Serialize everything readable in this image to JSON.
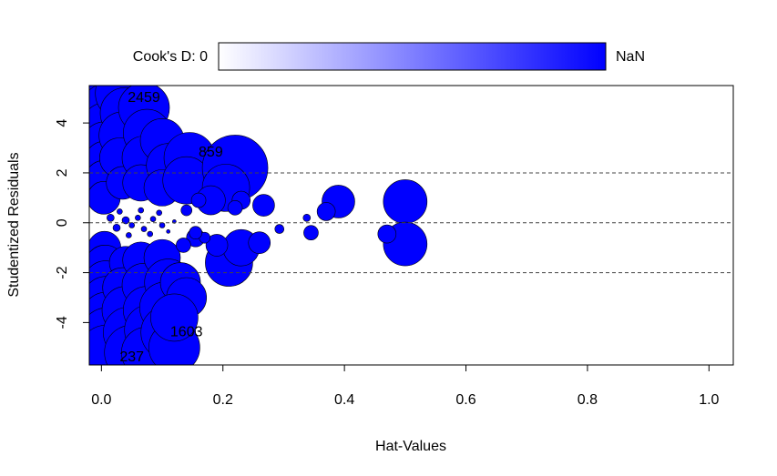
{
  "chart_data": {
    "type": "scatter",
    "title": "",
    "xlabel": "Hat-Values",
    "ylabel": "Studentized Residuals",
    "xlim": [
      -0.02,
      1.04
    ],
    "ylim": [
      -5.7,
      5.5
    ],
    "xticks": [
      0.0,
      0.2,
      0.4,
      0.6,
      0.8,
      1.0
    ],
    "xtick_labels": [
      "0.0",
      "0.2",
      "0.4",
      "0.6",
      "0.8",
      "1.0"
    ],
    "yticks": [
      -4,
      -2,
      0,
      2,
      4
    ],
    "ytick_labels": [
      "-4",
      "-2",
      "0",
      "2",
      "4"
    ],
    "reference_lines_y": [
      -2,
      0,
      2
    ],
    "reference_line_style": "dashed",
    "grid": false,
    "point_color": "#0000ff",
    "legend": {
      "position": "top",
      "label": "Cook's D: 0",
      "max_label": "NaN",
      "gradient_from": "#ffffff",
      "gradient_to": "#0000ff"
    },
    "point_labels": [
      {
        "id": "2459",
        "x": 0.07,
        "y": 5.0
      },
      {
        "id": "859",
        "x": 0.18,
        "y": 2.8
      },
      {
        "id": "1603",
        "x": 0.14,
        "y": -4.4
      },
      {
        "id": "237",
        "x": 0.05,
        "y": -5.4
      }
    ],
    "points": [
      {
        "x": 0.005,
        "y": 5.2,
        "size": 32
      },
      {
        "x": 0.01,
        "y": 4.5,
        "size": 30
      },
      {
        "x": 0.008,
        "y": 3.8,
        "size": 28
      },
      {
        "x": 0.006,
        "y": 3.1,
        "size": 26
      },
      {
        "x": 0.007,
        "y": 2.4,
        "size": 24
      },
      {
        "x": 0.005,
        "y": 1.7,
        "size": 22
      },
      {
        "x": 0.004,
        "y": 1.0,
        "size": 18
      },
      {
        "x": 0.005,
        "y": -1.0,
        "size": 18
      },
      {
        "x": 0.006,
        "y": -1.7,
        "size": 22
      },
      {
        "x": 0.007,
        "y": -2.4,
        "size": 24
      },
      {
        "x": 0.008,
        "y": -3.1,
        "size": 26
      },
      {
        "x": 0.009,
        "y": -3.8,
        "size": 28
      },
      {
        "x": 0.01,
        "y": -4.5,
        "size": 30
      },
      {
        "x": 0.008,
        "y": -5.2,
        "size": 30
      },
      {
        "x": 0.035,
        "y": 5.2,
        "size": 30
      },
      {
        "x": 0.04,
        "y": 4.4,
        "size": 28
      },
      {
        "x": 0.035,
        "y": 3.5,
        "size": 26
      },
      {
        "x": 0.03,
        "y": 2.6,
        "size": 22
      },
      {
        "x": 0.035,
        "y": 1.6,
        "size": 18
      },
      {
        "x": 0.04,
        "y": -1.6,
        "size": 18
      },
      {
        "x": 0.035,
        "y": -2.6,
        "size": 22
      },
      {
        "x": 0.04,
        "y": -3.5,
        "size": 26
      },
      {
        "x": 0.045,
        "y": -4.4,
        "size": 28
      },
      {
        "x": 0.05,
        "y": -5.2,
        "size": 30
      },
      {
        "x": 0.07,
        "y": 4.6,
        "size": 28
      },
      {
        "x": 0.075,
        "y": 3.6,
        "size": 26
      },
      {
        "x": 0.07,
        "y": 2.6,
        "size": 24
      },
      {
        "x": 0.065,
        "y": 1.6,
        "size": 20
      },
      {
        "x": 0.065,
        "y": -1.5,
        "size": 20
      },
      {
        "x": 0.07,
        "y": -2.5,
        "size": 24
      },
      {
        "x": 0.075,
        "y": -3.5,
        "size": 26
      },
      {
        "x": 0.08,
        "y": -4.3,
        "size": 28
      },
      {
        "x": 0.075,
        "y": -5.2,
        "size": 28
      },
      {
        "x": 0.1,
        "y": 3.3,
        "size": 24
      },
      {
        "x": 0.11,
        "y": 2.3,
        "size": 24
      },
      {
        "x": 0.1,
        "y": 1.4,
        "size": 20
      },
      {
        "x": 0.1,
        "y": -1.4,
        "size": 20
      },
      {
        "x": 0.11,
        "y": -2.4,
        "size": 26
      },
      {
        "x": 0.105,
        "y": -3.4,
        "size": 28
      },
      {
        "x": 0.11,
        "y": -4.4,
        "size": 30
      },
      {
        "x": 0.12,
        "y": -5.0,
        "size": 28
      },
      {
        "x": 0.145,
        "y": 2.6,
        "size": 28
      },
      {
        "x": 0.14,
        "y": 1.7,
        "size": 26
      },
      {
        "x": 0.13,
        "y": -2.4,
        "size": 22
      },
      {
        "x": 0.14,
        "y": -3.0,
        "size": 22
      },
      {
        "x": 0.12,
        "y": -3.8,
        "size": 26
      },
      {
        "x": 0.22,
        "y": 2.2,
        "size": 36
      },
      {
        "x": 0.205,
        "y": 1.4,
        "size": 26
      },
      {
        "x": 0.21,
        "y": -1.6,
        "size": 26
      },
      {
        "x": 0.23,
        "y": -1.0,
        "size": 20
      },
      {
        "x": 0.23,
        "y": 0.9,
        "size": 10
      },
      {
        "x": 0.22,
        "y": 0.6,
        "size": 8
      },
      {
        "x": 0.267,
        "y": 0.7,
        "size": 12
      },
      {
        "x": 0.26,
        "y": -0.8,
        "size": 12
      },
      {
        "x": 0.18,
        "y": 0.9,
        "size": 16
      },
      {
        "x": 0.19,
        "y": -0.9,
        "size": 12
      },
      {
        "x": 0.155,
        "y": -0.6,
        "size": 10
      },
      {
        "x": 0.135,
        "y": -0.9,
        "size": 8
      },
      {
        "x": 0.16,
        "y": 0.9,
        "size": 8
      },
      {
        "x": 0.17,
        "y": -0.6,
        "size": 6
      },
      {
        "x": 0.155,
        "y": -0.4,
        "size": 7
      },
      {
        "x": 0.14,
        "y": 0.5,
        "size": 6
      },
      {
        "x": 0.293,
        "y": -0.25,
        "size": 5
      },
      {
        "x": 0.338,
        "y": 0.2,
        "size": 4
      },
      {
        "x": 0.345,
        "y": -0.4,
        "size": 8
      },
      {
        "x": 0.39,
        "y": 0.85,
        "size": 18
      },
      {
        "x": 0.37,
        "y": 0.45,
        "size": 10
      },
      {
        "x": 0.5,
        "y": 0.85,
        "size": 24
      },
      {
        "x": 0.5,
        "y": -0.85,
        "size": 24
      },
      {
        "x": 0.47,
        "y": -0.45,
        "size": 10
      },
      {
        "x": 0.015,
        "y": 0.2,
        "size": 4
      },
      {
        "x": 0.025,
        "y": -0.2,
        "size": 4
      },
      {
        "x": 0.04,
        "y": 0.1,
        "size": 4
      },
      {
        "x": 0.05,
        "y": -0.1,
        "size": 3
      },
      {
        "x": 0.06,
        "y": 0.2,
        "size": 3
      },
      {
        "x": 0.07,
        "y": -0.25,
        "size": 3
      },
      {
        "x": 0.085,
        "y": 0.15,
        "size": 3
      },
      {
        "x": 0.1,
        "y": -0.1,
        "size": 3
      },
      {
        "x": 0.12,
        "y": 0.05,
        "size": 2
      },
      {
        "x": 0.03,
        "y": 0.45,
        "size": 3
      },
      {
        "x": 0.045,
        "y": -0.5,
        "size": 3
      },
      {
        "x": 0.065,
        "y": 0.5,
        "size": 3
      },
      {
        "x": 0.08,
        "y": -0.45,
        "size": 3
      },
      {
        "x": 0.095,
        "y": 0.4,
        "size": 3
      },
      {
        "x": 0.11,
        "y": -0.35,
        "size": 2
      }
    ]
  }
}
